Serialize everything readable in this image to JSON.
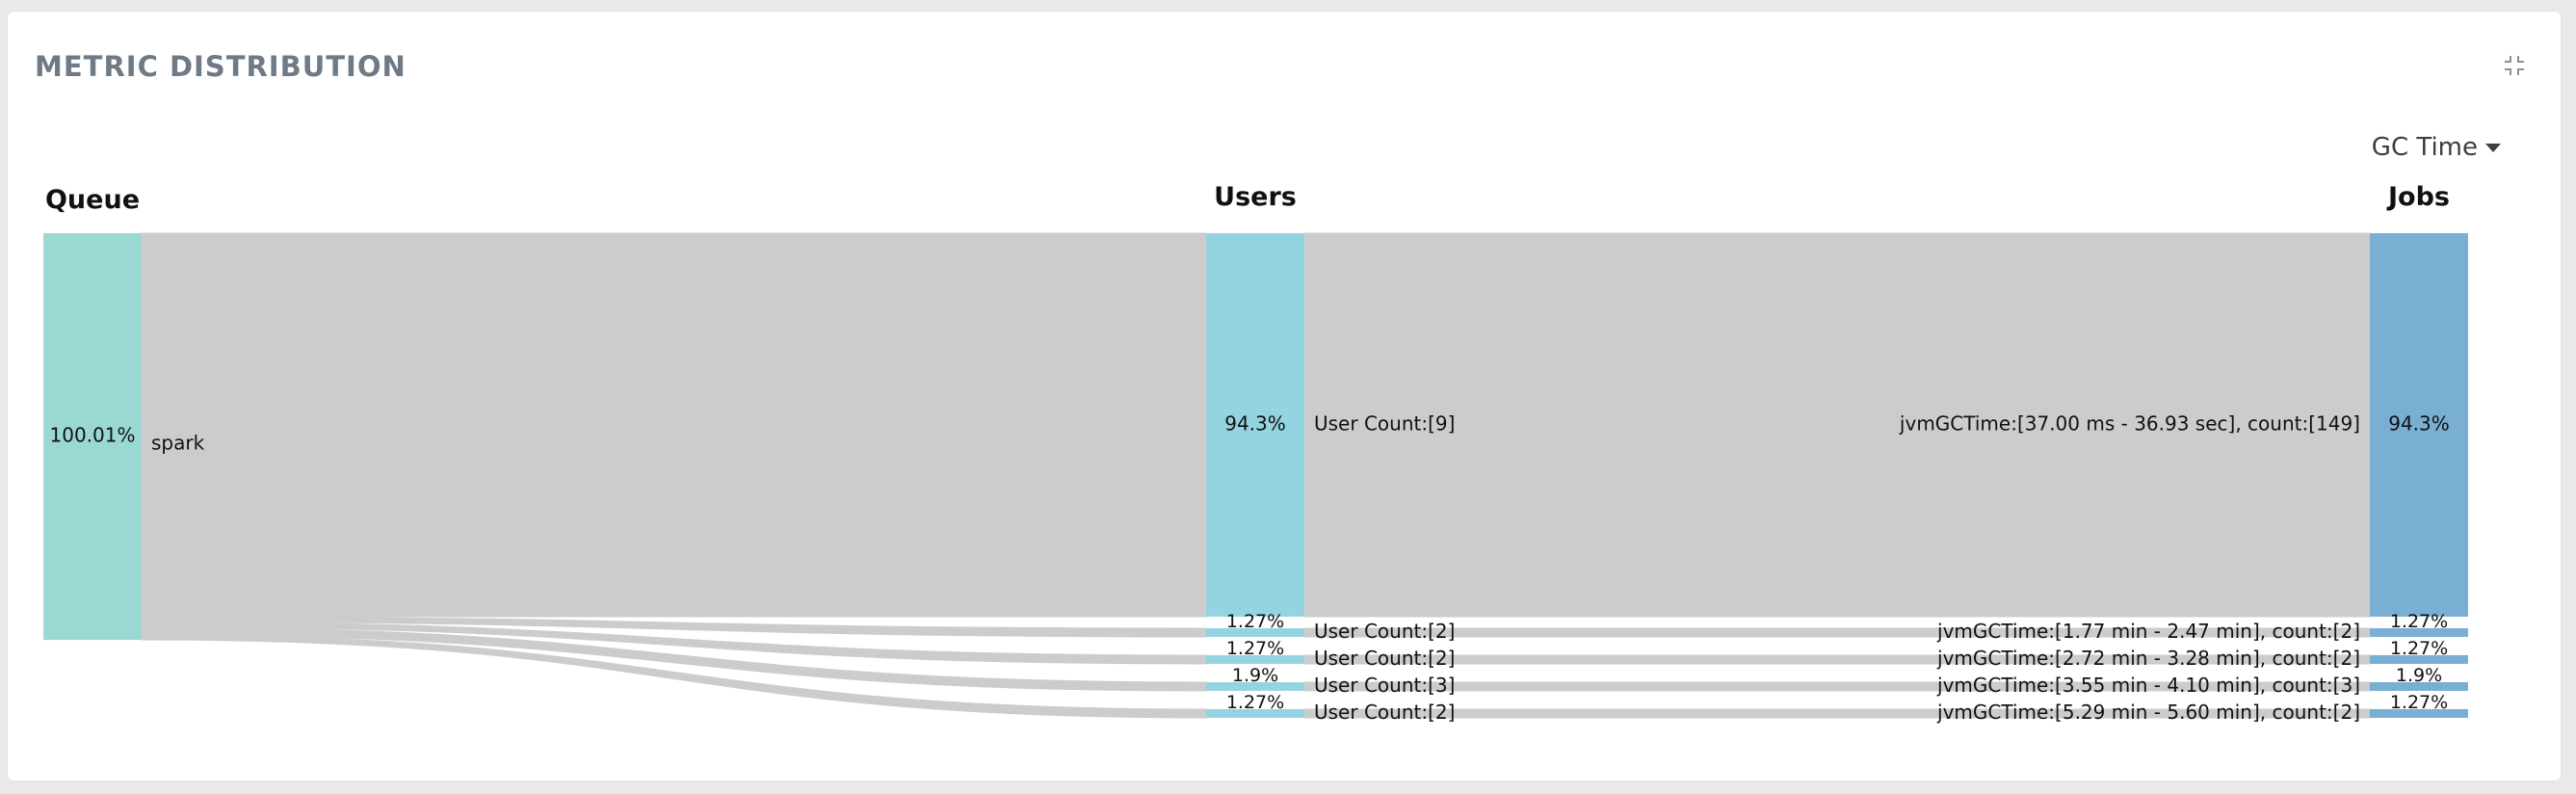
{
  "card": {
    "title": "METRIC DISTRIBUTION",
    "collapse_icon": "collapse-icon",
    "metric_selector": {
      "selected": "GC Time",
      "icon": "caret-down-icon"
    }
  },
  "colors": {
    "queue": "#9ad8d3",
    "users": "#94d4e0",
    "jobs": "#79afd2",
    "link": "#cccccc"
  },
  "chart_data": {
    "type": "sankey",
    "title": "METRIC DISTRIBUTION",
    "columns": [
      "Queue",
      "Users",
      "Jobs"
    ],
    "nodes": [
      {
        "id": "queue-spark",
        "column": 0,
        "value": 100.01,
        "value_label": "100.01%",
        "label": "spark"
      },
      {
        "id": "users-1",
        "column": 1,
        "value": 94.3,
        "value_label": "94.3%",
        "label": "User Count:[9]"
      },
      {
        "id": "users-2",
        "column": 1,
        "value": 1.27,
        "value_label": "1.27%",
        "label": "User Count:[2]"
      },
      {
        "id": "users-3",
        "column": 1,
        "value": 1.27,
        "value_label": "1.27%",
        "label": "User Count:[2]"
      },
      {
        "id": "users-4",
        "column": 1,
        "value": 1.9,
        "value_label": "1.9%",
        "label": "User Count:[3]"
      },
      {
        "id": "users-5",
        "column": 1,
        "value": 1.27,
        "value_label": "1.27%",
        "label": "User Count:[2]"
      },
      {
        "id": "jobs-1",
        "column": 2,
        "value": 94.3,
        "value_label": "94.3%",
        "label": "jvmGCTime:[37.00 ms - 36.93 sec], count:[149]"
      },
      {
        "id": "jobs-2",
        "column": 2,
        "value": 1.27,
        "value_label": "1.27%",
        "label": "jvmGCTime:[1.77 min - 2.47 min], count:[2]"
      },
      {
        "id": "jobs-3",
        "column": 2,
        "value": 1.27,
        "value_label": "1.27%",
        "label": "jvmGCTime:[2.72 min - 3.28 min], count:[2]"
      },
      {
        "id": "jobs-4",
        "column": 2,
        "value": 1.9,
        "value_label": "1.9%",
        "label": "jvmGCTime:[3.55 min - 4.10 min], count:[3]"
      },
      {
        "id": "jobs-5",
        "column": 2,
        "value": 1.27,
        "value_label": "1.27%",
        "label": "jvmGCTime:[5.29 min - 5.60 min], count:[2]"
      }
    ],
    "links": [
      {
        "source": "queue-spark",
        "target": "users-1",
        "value": 94.3
      },
      {
        "source": "queue-spark",
        "target": "users-2",
        "value": 1.27
      },
      {
        "source": "queue-spark",
        "target": "users-3",
        "value": 1.27
      },
      {
        "source": "queue-spark",
        "target": "users-4",
        "value": 1.9
      },
      {
        "source": "queue-spark",
        "target": "users-5",
        "value": 1.27
      },
      {
        "source": "users-1",
        "target": "jobs-1",
        "value": 94.3
      },
      {
        "source": "users-2",
        "target": "jobs-2",
        "value": 1.27
      },
      {
        "source": "users-3",
        "target": "jobs-3",
        "value": 1.27
      },
      {
        "source": "users-4",
        "target": "jobs-4",
        "value": 1.9
      },
      {
        "source": "users-5",
        "target": "jobs-5",
        "value": 1.27
      }
    ]
  }
}
